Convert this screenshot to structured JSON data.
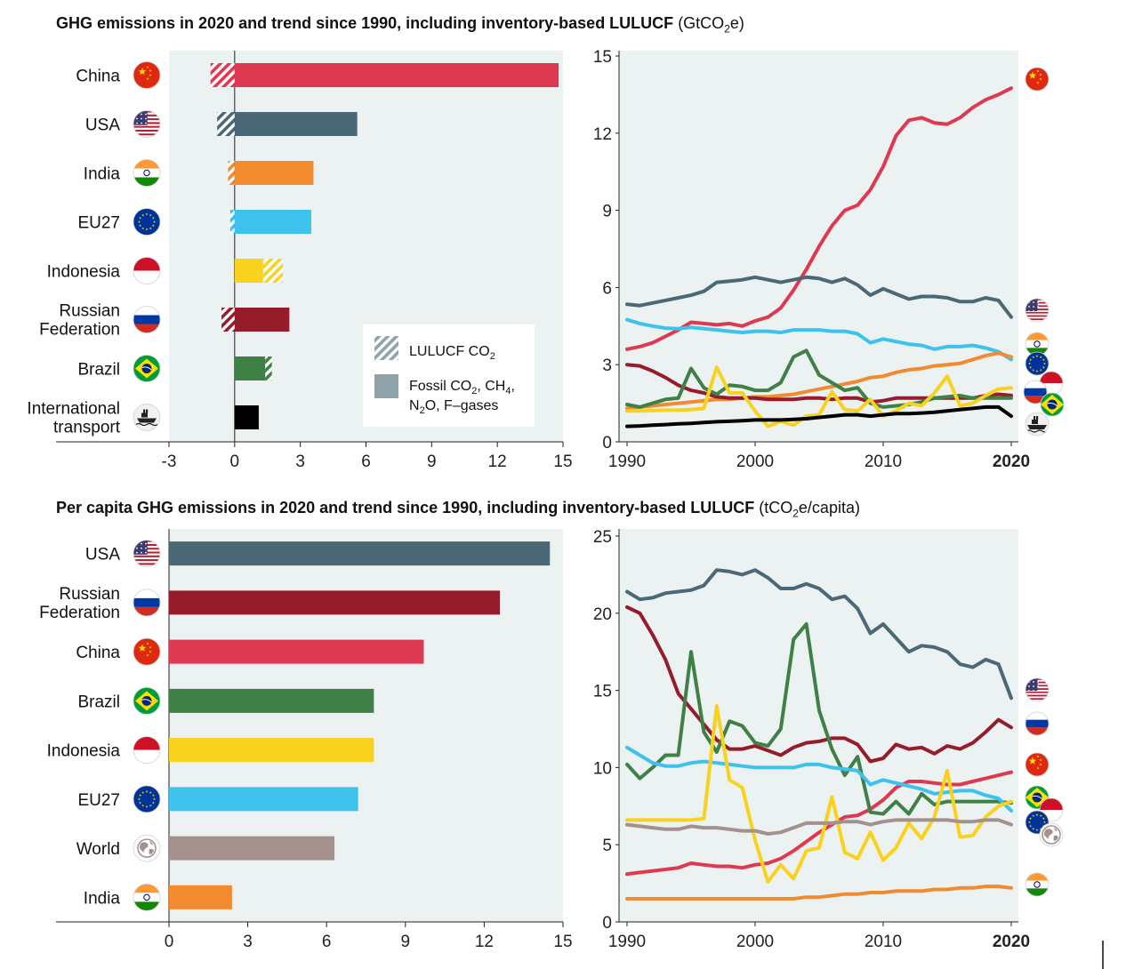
{
  "colors": {
    "China": "#dd3a52",
    "USA": "#4b6877",
    "India": "#f28a30",
    "EU27": "#3dc2ee",
    "Indonesia": "#f9d21e",
    "Russian Federation": "#961c2c",
    "Brazil": "#3f8046",
    "International transport": "#000000",
    "World": "#a2918d",
    "plot_bg": "#ecf1f2"
  },
  "top": {
    "title": "GHG emissions in 2020 and trend since 1990, including inventory-based LULUCF",
    "unit_pre": "(GtCO",
    "unit_sub": "2",
    "unit_post": "e)"
  },
  "bottom": {
    "title": "Per capita GHG emissions in 2020 and trend since 1990, including inventory-based LULUCF",
    "unit_pre": "(tCO",
    "unit_sub": "2",
    "unit_post": "e/capita)"
  },
  "legend": {
    "lulucf_pre": "LULUCF CO",
    "lulucf_sub": "2",
    "fossil_line1_a": "Fossil CO",
    "fossil_line1_sub1": "2",
    "fossil_line1_b": ", CH",
    "fossil_line1_sub2": "4",
    "fossil_line1_c": ",",
    "fossil_line2_a": "N",
    "fossil_line2_sub": "2",
    "fossil_line2_b": "O, F–gases"
  },
  "chart_data": [
    {
      "type": "bar",
      "subtype": "horizontal-stacked",
      "categories": [
        "China",
        "USA",
        "India",
        "EU27",
        "Indonesia",
        "Russian Federation",
        "Brazil",
        "International transport"
      ],
      "category_labels": [
        [
          "China"
        ],
        [
          "USA"
        ],
        [
          "India"
        ],
        [
          "EU27"
        ],
        [
          "Indonesia"
        ],
        [
          "Russian",
          "Federation"
        ],
        [
          "Brazil"
        ],
        [
          "International",
          "transport"
        ]
      ],
      "series": [
        {
          "name": "Fossil CO2, CH4, N2O, F–gases",
          "values": [
            14.8,
            5.6,
            3.6,
            3.5,
            1.3,
            2.5,
            1.4,
            1.1
          ]
        },
        {
          "name": "LULUCF CO2",
          "values": [
            -1.1,
            -0.8,
            -0.3,
            -0.2,
            0.9,
            -0.6,
            0.3,
            0
          ]
        }
      ],
      "xlim": [
        -3,
        15
      ],
      "xticks": [
        -3,
        0,
        3,
        6,
        9,
        12,
        15
      ],
      "xlabel": "",
      "ylabel": ""
    },
    {
      "type": "line",
      "x": [
        1990,
        1991,
        1992,
        1993,
        1994,
        1995,
        1996,
        1997,
        1998,
        1999,
        2000,
        2001,
        2002,
        2003,
        2004,
        2005,
        2006,
        2007,
        2008,
        2009,
        2010,
        2011,
        2012,
        2013,
        2014,
        2015,
        2016,
        2017,
        2018,
        2019,
        2020
      ],
      "series": [
        {
          "key": "China",
          "values": [
            3.6,
            3.7,
            3.85,
            4.1,
            4.35,
            4.65,
            4.6,
            4.55,
            4.6,
            4.5,
            4.7,
            4.85,
            5.2,
            5.9,
            6.7,
            7.6,
            8.4,
            9.0,
            9.2,
            9.8,
            10.7,
            11.9,
            12.5,
            12.6,
            12.4,
            12.35,
            12.6,
            13.0,
            13.3,
            13.5,
            13.75
          ]
        },
        {
          "key": "USA",
          "values": [
            5.35,
            5.3,
            5.4,
            5.5,
            5.6,
            5.7,
            5.85,
            6.2,
            6.25,
            6.3,
            6.4,
            6.3,
            6.2,
            6.3,
            6.4,
            6.35,
            6.2,
            6.35,
            6.1,
            5.7,
            5.95,
            5.75,
            5.55,
            5.65,
            5.65,
            5.6,
            5.45,
            5.45,
            5.6,
            5.5,
            4.85
          ]
        },
        {
          "key": "EU27",
          "values": [
            4.75,
            4.6,
            4.5,
            4.42,
            4.4,
            4.45,
            4.4,
            4.35,
            4.3,
            4.25,
            4.3,
            4.3,
            4.25,
            4.35,
            4.35,
            4.35,
            4.3,
            4.3,
            4.2,
            3.85,
            4.0,
            3.9,
            3.8,
            3.75,
            3.6,
            3.7,
            3.7,
            3.75,
            3.65,
            3.5,
            3.2
          ]
        },
        {
          "key": "India",
          "values": [
            1.3,
            1.35,
            1.4,
            1.45,
            1.5,
            1.55,
            1.6,
            1.65,
            1.65,
            1.7,
            1.75,
            1.75,
            1.8,
            1.85,
            1.95,
            2.05,
            2.15,
            2.25,
            2.35,
            2.5,
            2.55,
            2.7,
            2.8,
            2.85,
            2.95,
            3.0,
            3.05,
            3.2,
            3.35,
            3.45,
            3.3
          ]
        },
        {
          "key": "Russian Federation",
          "values": [
            3.0,
            2.95,
            2.75,
            2.5,
            2.2,
            2.0,
            1.9,
            1.75,
            1.7,
            1.7,
            1.7,
            1.65,
            1.65,
            1.65,
            1.7,
            1.7,
            1.65,
            1.7,
            1.7,
            1.55,
            1.6,
            1.7,
            1.7,
            1.7,
            1.7,
            1.7,
            1.7,
            1.7,
            1.8,
            1.85,
            1.8
          ]
        },
        {
          "key": "Brazil",
          "values": [
            1.45,
            1.35,
            1.5,
            1.65,
            1.7,
            2.85,
            2.1,
            1.85,
            2.2,
            2.15,
            2.0,
            2.0,
            2.3,
            3.3,
            3.55,
            2.6,
            2.3,
            2.0,
            2.1,
            1.5,
            1.35,
            1.4,
            1.45,
            1.55,
            1.7,
            1.75,
            1.8,
            1.7,
            1.7,
            1.7,
            1.7
          ]
        },
        {
          "key": "Indonesia",
          "values": [
            1.2,
            1.2,
            1.22,
            1.23,
            1.23,
            1.25,
            1.3,
            2.9,
            1.9,
            1.9,
            1.2,
            0.6,
            0.8,
            0.65,
            1.0,
            1.05,
            1.95,
            1.25,
            1.2,
            1.65,
            1.0,
            1.2,
            1.5,
            1.4,
            1.9,
            2.55,
            1.4,
            1.5,
            1.8,
            2.05,
            2.1
          ]
        },
        {
          "key": "International transport",
          "values": [
            0.6,
            0.62,
            0.65,
            0.67,
            0.7,
            0.72,
            0.75,
            0.78,
            0.8,
            0.82,
            0.85,
            0.85,
            0.85,
            0.87,
            0.9,
            0.95,
            1.0,
            1.05,
            1.05,
            1.0,
            1.05,
            1.1,
            1.1,
            1.12,
            1.15,
            1.2,
            1.25,
            1.3,
            1.35,
            1.35,
            1.0
          ]
        }
      ],
      "ylim": [
        0,
        15
      ],
      "yticks": [
        0,
        3,
        6,
        9,
        12,
        15
      ],
      "xticks": [
        1990,
        2000,
        2010,
        2020
      ],
      "xlabel": "",
      "ylabel": ""
    },
    {
      "type": "bar",
      "subtype": "horizontal",
      "categories": [
        "USA",
        "Russian Federation",
        "China",
        "Brazil",
        "Indonesia",
        "EU27",
        "World",
        "India"
      ],
      "category_labels": [
        [
          "USA"
        ],
        [
          "Russian",
          "Federation"
        ],
        [
          "China"
        ],
        [
          "Brazil"
        ],
        [
          "Indonesia"
        ],
        [
          "EU27"
        ],
        [
          "World"
        ],
        [
          "India"
        ]
      ],
      "values": [
        14.5,
        12.6,
        9.7,
        7.8,
        7.8,
        7.2,
        6.3,
        2.4
      ],
      "xlim": [
        0,
        15
      ],
      "xticks": [
        0,
        3,
        6,
        9,
        12,
        15
      ],
      "xlabel": "",
      "ylabel": ""
    },
    {
      "type": "line",
      "x": [
        1990,
        1991,
        1992,
        1993,
        1994,
        1995,
        1996,
        1997,
        1998,
        1999,
        2000,
        2001,
        2002,
        2003,
        2004,
        2005,
        2006,
        2007,
        2008,
        2009,
        2010,
        2011,
        2012,
        2013,
        2014,
        2015,
        2016,
        2017,
        2018,
        2019,
        2020
      ],
      "series": [
        {
          "key": "USA",
          "values": [
            21.4,
            20.9,
            21.0,
            21.3,
            21.4,
            21.5,
            21.8,
            22.8,
            22.7,
            22.5,
            22.8,
            22.3,
            21.6,
            21.6,
            21.9,
            21.6,
            20.9,
            21.1,
            20.3,
            18.7,
            19.3,
            18.4,
            17.5,
            17.9,
            17.8,
            17.5,
            16.7,
            16.5,
            17.0,
            16.7,
            14.5
          ]
        },
        {
          "key": "Russian Federation",
          "values": [
            20.4,
            20.0,
            18.6,
            17.0,
            14.8,
            13.8,
            12.8,
            11.8,
            11.2,
            11.2,
            11.4,
            11.1,
            10.8,
            11.3,
            11.6,
            11.7,
            11.9,
            11.9,
            11.5,
            10.4,
            10.6,
            11.5,
            11.2,
            11.3,
            10.9,
            11.4,
            11.2,
            11.6,
            12.3,
            13.1,
            12.6
          ]
        },
        {
          "key": "China",
          "values": [
            3.1,
            3.2,
            3.3,
            3.4,
            3.5,
            3.8,
            3.7,
            3.6,
            3.6,
            3.5,
            3.7,
            3.8,
            4.1,
            4.6,
            5.2,
            5.8,
            6.3,
            6.8,
            6.9,
            7.3,
            7.9,
            8.7,
            9.1,
            9.1,
            9.0,
            8.9,
            8.9,
            9.1,
            9.3,
            9.5,
            9.7
          ]
        },
        {
          "key": "Brazil",
          "values": [
            10.2,
            9.3,
            10.0,
            10.8,
            10.8,
            17.5,
            12.3,
            11.0,
            13.0,
            12.7,
            11.6,
            11.4,
            12.5,
            18.3,
            19.3,
            13.7,
            11.2,
            9.5,
            10.7,
            7.1,
            7.0,
            7.8,
            7.0,
            8.3,
            7.6,
            7.8,
            7.8,
            7.8,
            7.8,
            7.8,
            7.7
          ]
        },
        {
          "key": "EU27",
          "values": [
            11.3,
            10.8,
            10.3,
            10.1,
            10.1,
            10.3,
            10.4,
            10.3,
            10.2,
            10.1,
            10.0,
            10.0,
            10.0,
            10.0,
            10.2,
            10.2,
            10.0,
            9.9,
            9.8,
            8.9,
            9.2,
            9.0,
            8.8,
            8.6,
            8.3,
            8.4,
            8.5,
            8.5,
            8.2,
            8.0,
            7.2
          ]
        },
        {
          "key": "Indonesia",
          "values": [
            6.6,
            6.6,
            6.6,
            6.6,
            6.6,
            6.6,
            6.7,
            14.0,
            9.2,
            8.7,
            5.3,
            2.6,
            3.7,
            2.8,
            4.6,
            4.8,
            8.1,
            4.5,
            4.1,
            5.8,
            4.0,
            4.8,
            6.4,
            5.4,
            6.8,
            9.8,
            5.5,
            5.6,
            6.8,
            7.5,
            7.8
          ]
        },
        {
          "key": "World",
          "values": [
            6.3,
            6.2,
            6.1,
            6.0,
            6.0,
            6.2,
            6.1,
            6.1,
            6.0,
            5.9,
            5.9,
            5.7,
            5.8,
            6.1,
            6.4,
            6.4,
            6.4,
            6.5,
            6.5,
            6.3,
            6.5,
            6.6,
            6.6,
            6.6,
            6.6,
            6.6,
            6.5,
            6.5,
            6.6,
            6.6,
            6.3
          ]
        },
        {
          "key": "India",
          "values": [
            1.5,
            1.5,
            1.5,
            1.5,
            1.5,
            1.5,
            1.5,
            1.5,
            1.5,
            1.5,
            1.5,
            1.5,
            1.5,
            1.5,
            1.6,
            1.6,
            1.7,
            1.8,
            1.8,
            1.9,
            1.9,
            2.0,
            2.0,
            2.0,
            2.1,
            2.1,
            2.2,
            2.2,
            2.3,
            2.3,
            2.2
          ]
        }
      ],
      "ylim": [
        0,
        25
      ],
      "yticks": [
        0,
        5,
        10,
        15,
        20,
        25
      ],
      "xticks": [
        1990,
        2000,
        2010,
        2020
      ],
      "xlabel": "",
      "ylabel": ""
    }
  ],
  "top_end_flags": [
    "China",
    "USA",
    "India",
    "EU27",
    "Indonesia",
    "Russian Federation",
    "Brazil",
    "International transport"
  ],
  "bottom_end_flags": [
    "USA",
    "Russian Federation",
    "China",
    "Brazil",
    "Indonesia",
    "EU27",
    "World",
    "India"
  ]
}
